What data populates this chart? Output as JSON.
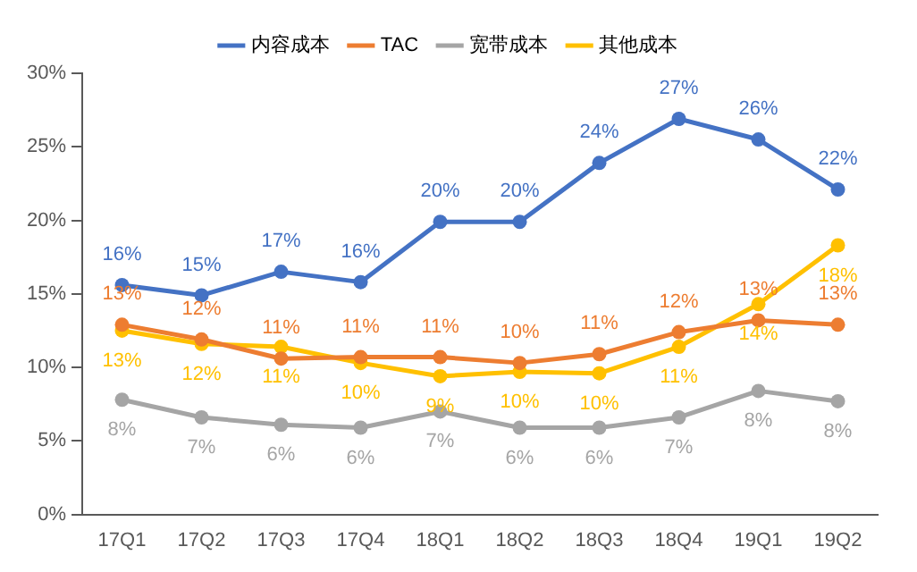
{
  "chart_data": {
    "type": "line",
    "categories": [
      "17Q1",
      "17Q2",
      "17Q3",
      "17Q4",
      "18Q1",
      "18Q2",
      "18Q3",
      "18Q4",
      "19Q1",
      "19Q2"
    ],
    "series": [
      {
        "name": "内容成本",
        "color": "#4472c4",
        "values": [
          15.6,
          14.9,
          16.5,
          15.8,
          19.9,
          19.9,
          23.9,
          26.9,
          25.5,
          22.1
        ],
        "value_labels": [
          "16%",
          "15%",
          "17%",
          "16%",
          "20%",
          "20%",
          "24%",
          "27%",
          "26%",
          "22%"
        ]
      },
      {
        "name": "TAC",
        "color": "#ed7d31",
        "values": [
          12.9,
          11.9,
          10.6,
          10.7,
          10.7,
          10.3,
          10.9,
          12.4,
          13.2,
          12.9
        ],
        "value_labels": [
          "13%",
          "12%",
          "11%",
          "11%",
          "11%",
          "10%",
          "11%",
          "12%",
          "13%",
          "13%"
        ]
      },
      {
        "name": "宽带成本",
        "color": "#a5a5a5",
        "values": [
          7.8,
          6.6,
          6.1,
          5.9,
          7.0,
          5.9,
          5.9,
          6.6,
          8.4,
          7.7
        ],
        "value_labels": [
          "8%",
          "7%",
          "6%",
          "6%",
          "7%",
          "6%",
          "6%",
          "7%",
          "8%",
          "8%"
        ]
      },
      {
        "name": "其他成本",
        "color": "#ffc000",
        "values": [
          12.5,
          11.6,
          11.4,
          10.3,
          9.4,
          9.7,
          9.6,
          11.4,
          14.3,
          18.3
        ],
        "value_labels": [
          "13%",
          "12%",
          "11%",
          "10%",
          "9%",
          "10%",
          "10%",
          "11%",
          "14%",
          "18%"
        ]
      }
    ],
    "ylim": [
      0,
      30
    ],
    "yticks": [
      {
        "value": 0,
        "label": "0%"
      },
      {
        "value": 5,
        "label": "5%"
      },
      {
        "value": 10,
        "label": "10%"
      },
      {
        "value": 15,
        "label": "15%"
      },
      {
        "value": 20,
        "label": "20%"
      },
      {
        "value": 25,
        "label": "25%"
      },
      {
        "value": 30,
        "label": "30%"
      }
    ],
    "grid": false,
    "legend": "top",
    "marker": "circle",
    "line_style": "solid"
  }
}
